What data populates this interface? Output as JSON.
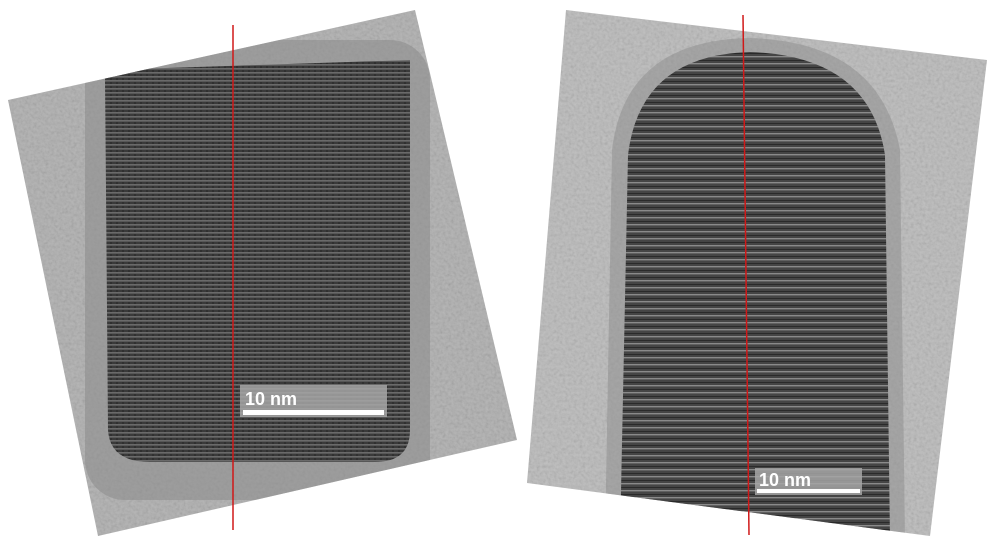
{
  "panels": [
    {
      "scale_bar": {
        "label": "10 nm"
      }
    },
    {
      "scale_bar": {
        "label": "10 nm"
      }
    }
  ]
}
